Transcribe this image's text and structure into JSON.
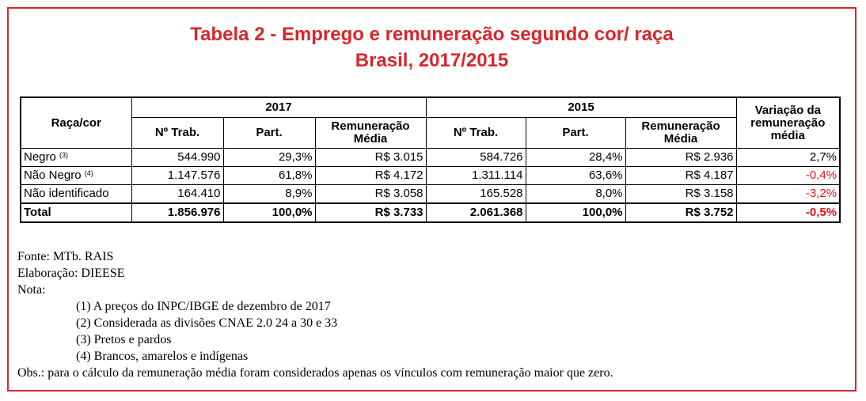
{
  "title": {
    "line1": "Tabela 2 - Emprego e remuneração segundo cor/ raça",
    "line2": "Brasil, 2017/2015"
  },
  "table": {
    "header": {
      "race_col": "Raça/cor",
      "year_2017": "2017",
      "year_2015": "2015",
      "variation_line1": "Variação da",
      "variation_line2": "remuneração",
      "variation_line3": "média",
      "n_trab": "Nº Trab.",
      "part": "Part.",
      "rem_line1": "Remuneração",
      "rem_line2": "Média"
    },
    "rows": [
      {
        "label": "Negro",
        "note": "(3)",
        "n2017": "544.990",
        "p2017": "29,3%",
        "r2017": "R$ 3.015",
        "n2015": "584.726",
        "p2015": "28,4%",
        "r2015": "R$ 2.936",
        "var": "2,7%"
      },
      {
        "label": "Não Negro",
        "note": "(4)",
        "n2017": "1.147.576",
        "p2017": "61,8%",
        "r2017": "R$ 4.172",
        "n2015": "1.311.114",
        "p2015": "63,6%",
        "r2015": "R$ 4.187",
        "var": "-0,4%"
      },
      {
        "label": "Não identificado",
        "note": "",
        "n2017": "164.410",
        "p2017": "8,9%",
        "r2017": "R$ 3.058",
        "n2015": "165.528",
        "p2015": "8,0%",
        "r2015": "R$ 3.158",
        "var": "-3,2%"
      },
      {
        "label": "Total",
        "note": "",
        "n2017": "1.856.976",
        "p2017": "100,0%",
        "r2017": "R$ 3.733",
        "n2015": "2.061.368",
        "p2015": "100,0%",
        "r2015": "R$ 3.752",
        "var": "-0,5%"
      }
    ]
  },
  "notes": {
    "source": "Fonte: MTb. RAIS",
    "elaboration": "Elaboração: DIEESE",
    "note_label": "Nota:",
    "items": [
      "(1) A preços do INPC/IBGE de dezembro de 2017",
      "(2) Considerada as divisões CNAE 2.0 24 a 30 e 33",
      "(3)  Pretos e pardos",
      "(4) Brancos, amarelos e indígenas"
    ],
    "obs": "Obs.: para o cálculo da remuneração média foram considerados apenas os vínculos com remuneração maior que zero."
  },
  "colors": {
    "title": "#d9252b",
    "frame": "#d9252b",
    "negative": "#e0141b"
  }
}
